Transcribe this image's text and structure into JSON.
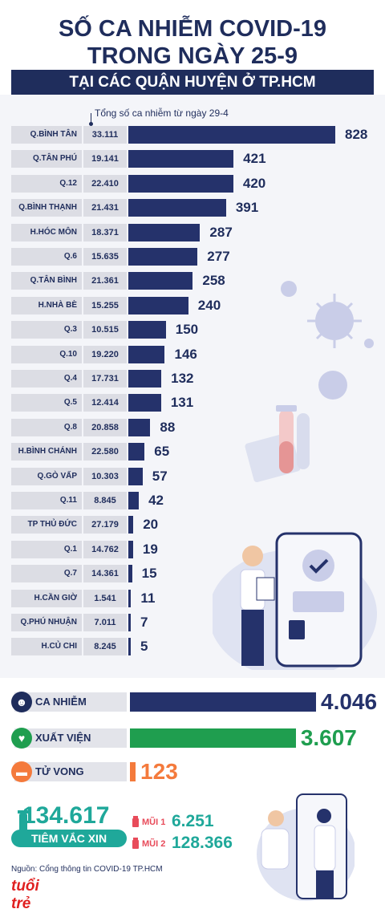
{
  "header": {
    "title_line1": "SỐ CA NHIỄM COVID-19",
    "title_line2": "TRONG NGÀY 25-9",
    "subtitle": "TẠI CÁC QUẬN HUYỆN Ở TP.HCM",
    "column_note": "Tổng số ca nhiễm từ ngày 29-4"
  },
  "chart_data": {
    "type": "bar",
    "orientation": "horizontal",
    "categories": [
      "Q.BÌNH TÂN",
      "Q.TÂN PHÚ",
      "Q.12",
      "Q.BÌNH THẠNH",
      "H.HÓC MÔN",
      "Q.6",
      "Q.TÂN BÌNH",
      "H.NHÀ BÈ",
      "Q.3",
      "Q.10",
      "Q.4",
      "Q.5",
      "Q.8",
      "H.BÌNH CHÁNH",
      "Q.GÒ VẤP",
      "Q.11",
      "TP THỦ ĐỨC",
      "Q.1",
      "Q.7",
      "H.CẦN GIỜ",
      "Q.PHÚ NHUẬN",
      "H.CỦ CHI"
    ],
    "totals": [
      "33.111",
      "19.141",
      "22.410",
      "21.431",
      "18.371",
      "15.635",
      "21.361",
      "15.255",
      "10.515",
      "19.220",
      "17.731",
      "12.414",
      "20.858",
      "22.580",
      "10.303",
      "8.845",
      "27.179",
      "14.762",
      "14.361",
      "1.541",
      "7.011",
      "8.245"
    ],
    "values": [
      828,
      421,
      420,
      391,
      287,
      277,
      258,
      240,
      150,
      146,
      132,
      131,
      88,
      65,
      57,
      42,
      20,
      19,
      15,
      11,
      7,
      5
    ],
    "bar_color": "#25326b"
  },
  "summary": {
    "infected": {
      "label": "CA NHIỄM",
      "value_text": "4.046",
      "value": 4046,
      "color": "#25326b"
    },
    "recovered": {
      "label": "XUẤT VIỆN",
      "value_text": "3.607",
      "value": 3607,
      "color": "#1f9e4f"
    },
    "deaths": {
      "label": "TỬ VONG",
      "value_text": "123",
      "value": 123,
      "color": "#f47a3c"
    }
  },
  "vaccination": {
    "total": "134.617",
    "label": "TIÊM VẮC XIN",
    "dose1_label": "MŨI 1",
    "dose1_value": "6.251",
    "dose2_label": "MŨI 2",
    "dose2_value": "128.366"
  },
  "footer": {
    "source": "Nguồn: Cổng thông tin COVID-19 TP.HCM",
    "logo": "tuổi trẻ"
  }
}
